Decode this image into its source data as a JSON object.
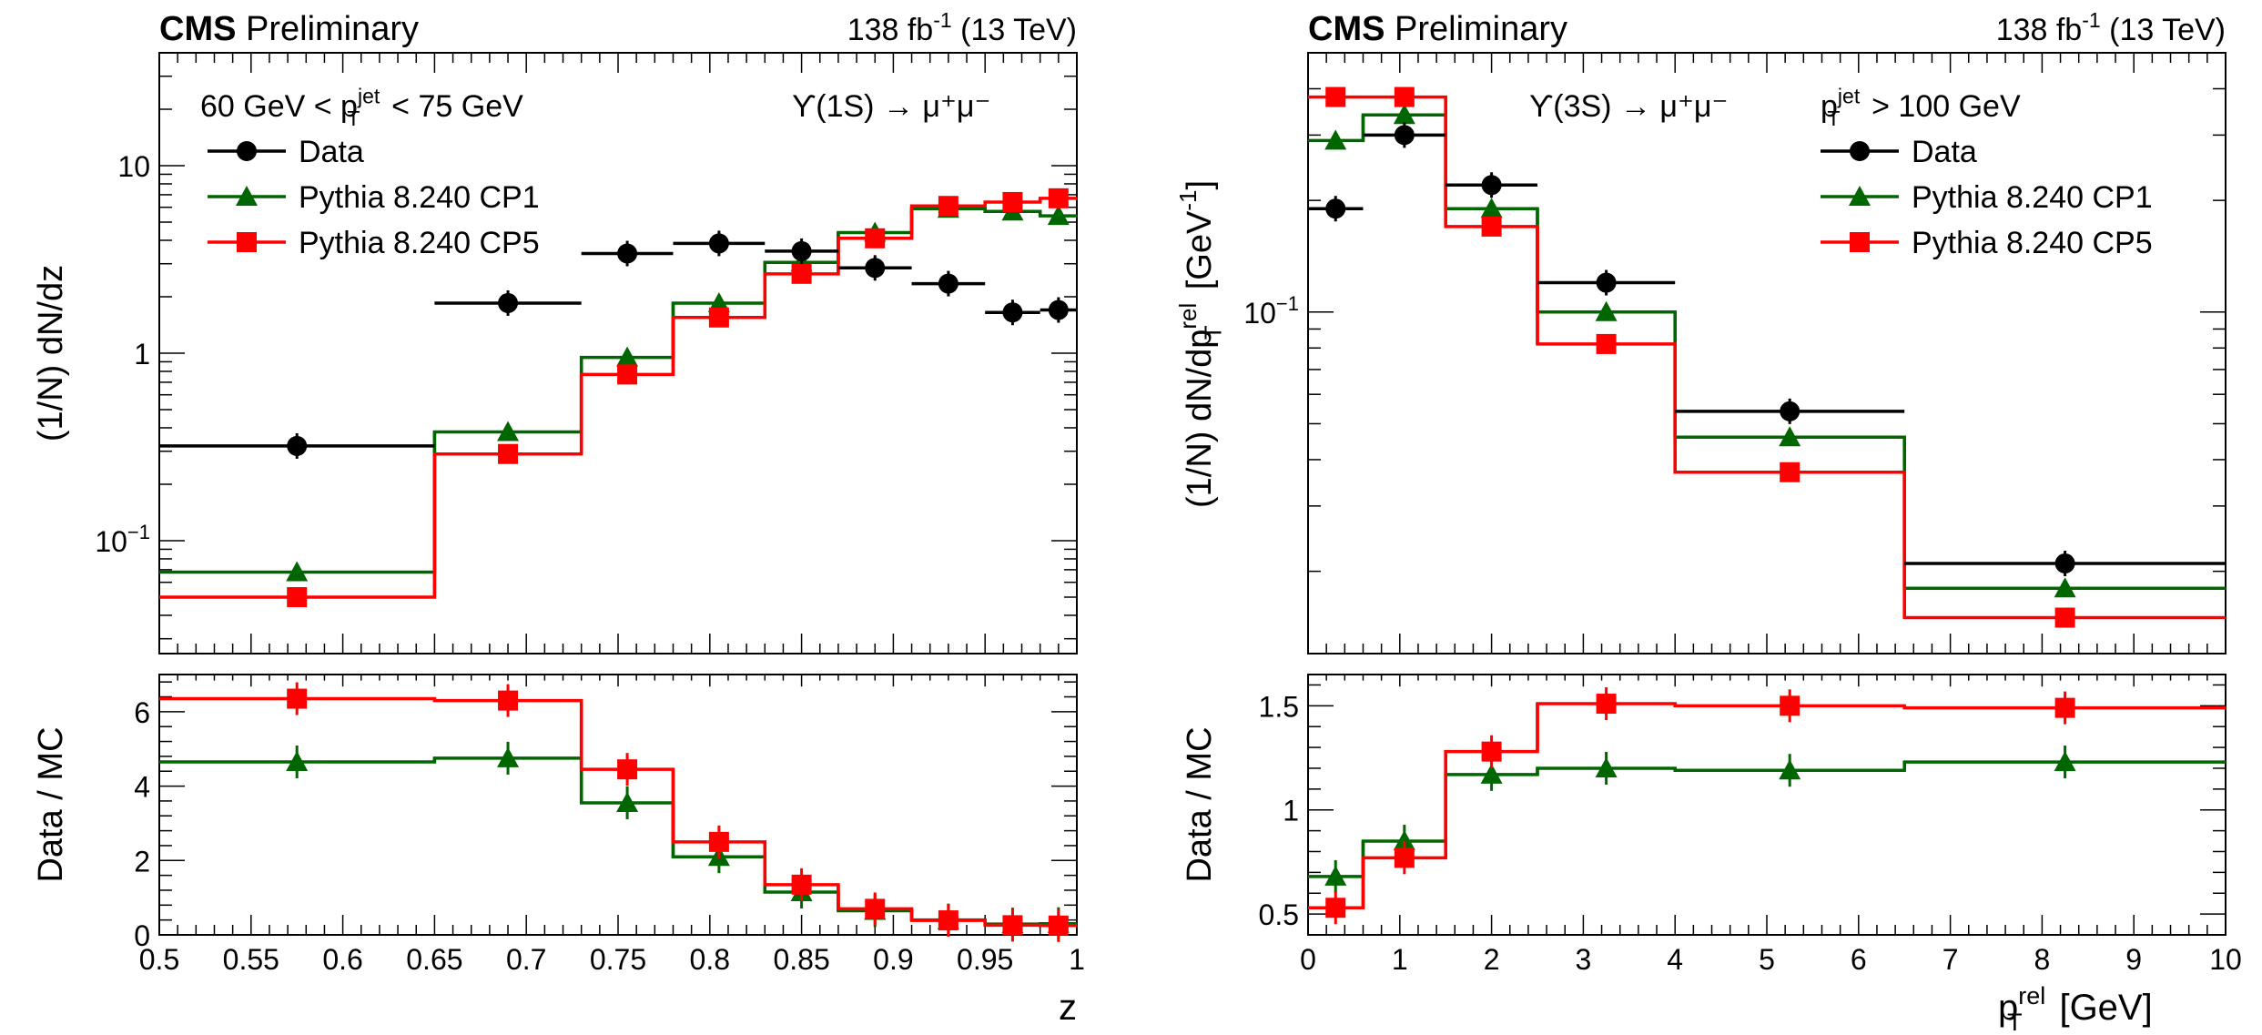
{
  "chart_data": [
    {
      "id": "left",
      "type": "histogram-step-with-ratio",
      "header": {
        "experiment": "CMS",
        "status": "Preliminary",
        "lumi_value": "138 fb",
        "lumi_exp": "-1",
        "energy": " (13 TeV)"
      },
      "top": {
        "ylabel": "(1/N) dN/dz",
        "yscale": "log",
        "ylim": [
          0.025,
          40
        ],
        "yticks": [
          {
            "v": 0.1,
            "base": "10",
            "exp": "−1"
          },
          {
            "v": 1,
            "base": "1",
            "exp": ""
          },
          {
            "v": 10,
            "base": "10",
            "exp": ""
          }
        ],
        "annotation_left": {
          "pre": "60 GeV < p",
          "sub": "T",
          "sup": "jet",
          "post": " < 75 GeV"
        },
        "annotation_right": "ϒ(1S) → μ⁺μ⁻",
        "legend": [
          "Data",
          "Pythia 8.240 CP1",
          "Pythia 8.240 CP5"
        ]
      },
      "ratio": {
        "ylabel": "Data / MC",
        "ylim": [
          0,
          7
        ],
        "yticks": [
          0,
          2,
          4,
          6
        ]
      },
      "x": {
        "label": "z",
        "lim": [
          0.5,
          1.0
        ],
        "ticks": [
          "0.5",
          "0.55",
          "0.6",
          "0.65",
          "0.7",
          "0.75",
          "0.8",
          "0.85",
          "0.9",
          "0.95",
          "1"
        ],
        "tick_values": [
          0.5,
          0.55,
          0.6,
          0.65,
          0.7,
          0.75,
          0.8,
          0.85,
          0.9,
          0.95,
          1.0
        ]
      },
      "bins": [
        0.5,
        0.65,
        0.73,
        0.78,
        0.83,
        0.87,
        0.91,
        0.95,
        0.98,
        1.0
      ],
      "points_x": [
        0.575,
        0.69,
        0.755,
        0.805,
        0.85,
        0.89,
        0.93,
        0.965,
        0.99
      ],
      "series": [
        {
          "name": "Data",
          "color": "#000000",
          "marker": "circle",
          "values": [
            0.32,
            1.85,
            3.4,
            3.85,
            3.5,
            2.85,
            2.35,
            1.65,
            1.7
          ]
        },
        {
          "name": "Pythia 8.240 CP1",
          "color": "#006600",
          "marker": "triangle",
          "values": [
            0.068,
            0.38,
            0.95,
            1.85,
            3.05,
            4.4,
            5.9,
            5.7,
            5.4
          ]
        },
        {
          "name": "Pythia 8.240 CP5",
          "color": "#ff0000",
          "marker": "square",
          "values": [
            0.05,
            0.29,
            0.77,
            1.55,
            2.65,
            4.1,
            6.1,
            6.4,
            6.7
          ]
        }
      ],
      "ratio_series": [
        {
          "name": "Data / CP1",
          "color": "#006600",
          "marker": "triangle",
          "values": [
            4.65,
            4.75,
            3.55,
            2.1,
            1.15,
            0.65,
            0.4,
            0.29,
            0.3
          ]
        },
        {
          "name": "Data / CP5",
          "color": "#ff0000",
          "marker": "square",
          "values": [
            6.35,
            6.3,
            4.45,
            2.5,
            1.35,
            0.7,
            0.39,
            0.26,
            0.25
          ]
        }
      ]
    },
    {
      "id": "right",
      "type": "histogram-step-with-ratio",
      "header": {
        "experiment": "CMS",
        "status": "Preliminary",
        "lumi_value": "138 fb",
        "lumi_exp": "-1",
        "energy": " (13 TeV)"
      },
      "top": {
        "ylabel_parts": {
          "pre": "(1/N) dN/dp",
          "sub": "T",
          "sup": "rel",
          "post": " [GeV",
          "post_sup": "-1",
          "end": "]"
        },
        "yscale": "log",
        "ylim": [
          0.012,
          0.5
        ],
        "yticks": [
          {
            "v": 0.1,
            "base": "10",
            "exp": "−1"
          }
        ],
        "annotation_left": "ϒ(3S) → μ⁺μ⁻",
        "annotation_right": {
          "pre": "p",
          "sub": "T",
          "sup": "jet",
          "post": " > 100 GeV"
        },
        "legend": [
          "Data",
          "Pythia 8.240 CP1",
          "Pythia 8.240 CP5"
        ]
      },
      "ratio": {
        "ylabel": "Data / MC",
        "ylim": [
          0.4,
          1.65
        ],
        "yticks": [
          0.5,
          1,
          1.5
        ],
        "ytick_labels": [
          "0.5",
          "1",
          "1.5"
        ]
      },
      "x": {
        "label_parts": {
          "pre": "p",
          "sub": "T",
          "sup": "rel",
          "post": " [GeV]"
        },
        "lim": [
          0,
          10
        ],
        "ticks": [
          "0",
          "1",
          "2",
          "3",
          "4",
          "5",
          "6",
          "7",
          "8",
          "9",
          "10"
        ],
        "tick_values": [
          0,
          1,
          2,
          3,
          4,
          5,
          6,
          7,
          8,
          9,
          10
        ]
      },
      "bins": [
        0,
        0.6,
        1.5,
        2.5,
        4.0,
        6.5,
        10.0
      ],
      "points_x": [
        0.3,
        1.05,
        2.0,
        3.25,
        5.25,
        8.25
      ],
      "series": [
        {
          "name": "Data",
          "color": "#000000",
          "marker": "circle",
          "values": [
            0.19,
            0.3,
            0.22,
            0.12,
            0.054,
            0.021
          ]
        },
        {
          "name": "Pythia 8.240 CP1",
          "color": "#006600",
          "marker": "triangle",
          "values": [
            0.29,
            0.34,
            0.19,
            0.1,
            0.046,
            0.018
          ]
        },
        {
          "name": "Pythia 8.240 CP5",
          "color": "#ff0000",
          "marker": "square",
          "values": [
            0.38,
            0.38,
            0.17,
            0.082,
            0.037,
            0.015
          ]
        }
      ],
      "ratio_series": [
        {
          "name": "Data / CP1",
          "color": "#006600",
          "marker": "triangle",
          "values": [
            0.68,
            0.85,
            1.17,
            1.2,
            1.19,
            1.23
          ]
        },
        {
          "name": "Data / CP5",
          "color": "#ff0000",
          "marker": "square",
          "values": [
            0.53,
            0.77,
            1.28,
            1.51,
            1.5,
            1.49
          ]
        }
      ]
    }
  ]
}
